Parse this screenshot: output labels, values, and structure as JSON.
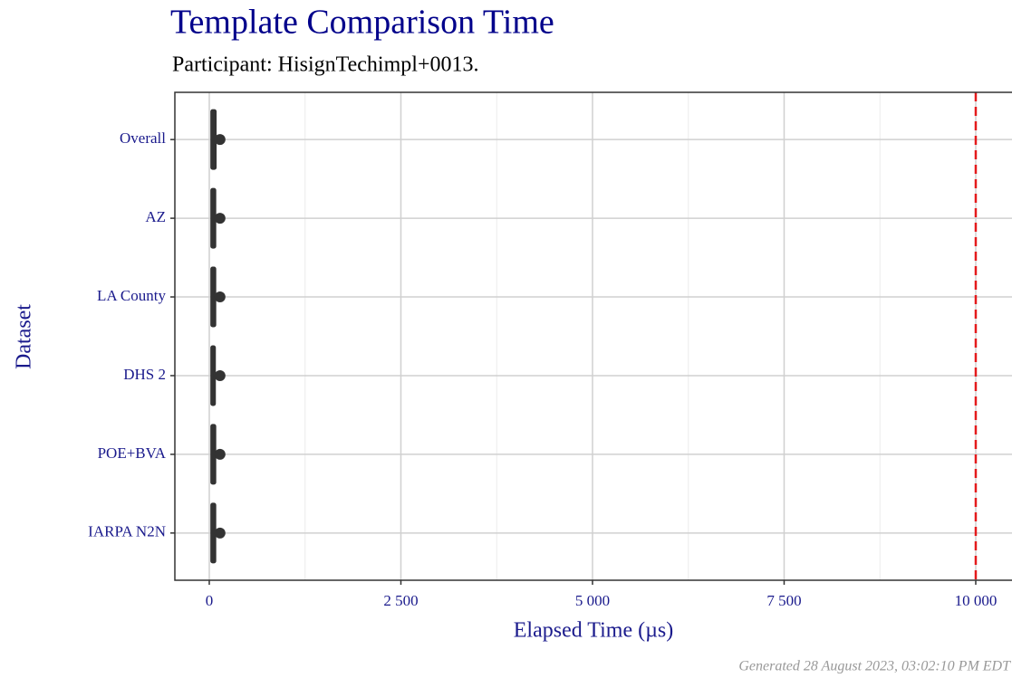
{
  "chart_data": {
    "type": "box",
    "title": "Template Comparison Time",
    "subtitle": "Participant: HisignTechimpl+0013.",
    "xlabel": "Elapsed Time (µs)",
    "ylabel": "Dataset",
    "footer": "Generated 28 August 2023, 03:02:10 PM EDT",
    "categories": [
      "Overall",
      "AZ",
      "LA County",
      "DHS 2",
      "POE+BVA",
      "IARPA N2N"
    ],
    "q1": [
      20,
      20,
      20,
      20,
      20,
      20
    ],
    "median": [
      50,
      50,
      50,
      45,
      50,
      50
    ],
    "q3": [
      90,
      85,
      85,
      80,
      85,
      85
    ],
    "mean": [
      140,
      140,
      140,
      140,
      140,
      140
    ],
    "color": "#333333",
    "xlim": [
      -449,
      10473
    ],
    "xticks": [
      0,
      {
        "value": 2500,
        "label": "2 500"
      },
      {
        "value": 5000,
        "label": "5 000"
      },
      {
        "value": 7500,
        "label": "7 500"
      },
      {
        "value": 10000,
        "label": "10 000"
      }
    ],
    "minor_xticks": [
      1250,
      3750,
      6250,
      8750
    ],
    "reference_line": {
      "value": 10000,
      "color": "#e41a1c"
    },
    "grid": true
  }
}
